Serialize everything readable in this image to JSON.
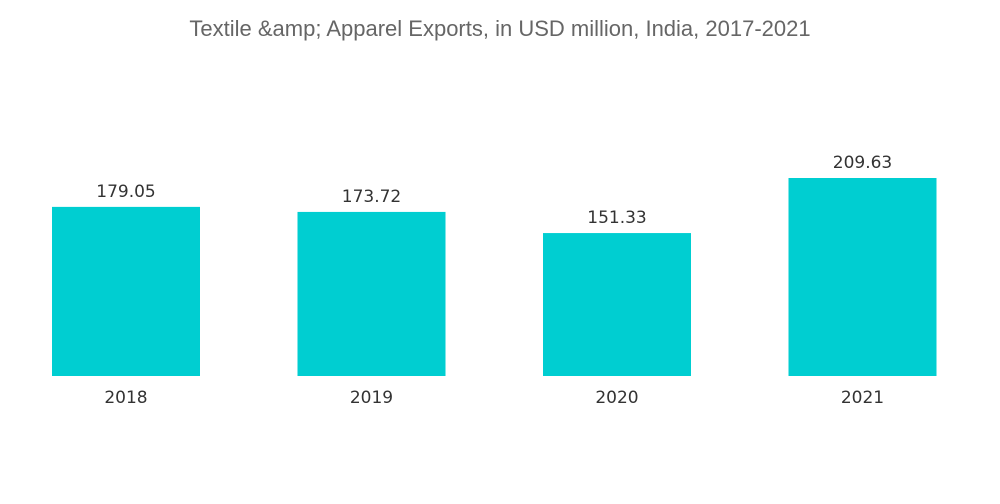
{
  "chart_data": {
    "type": "bar",
    "title": "Textile &amp; Apparel Exports, in USD million, India, 2017-2021",
    "categories": [
      "2018",
      "2019",
      "2020",
      "2021"
    ],
    "values": [
      179.05,
      173.72,
      151.33,
      209.63
    ],
    "value_labels": [
      "179.05",
      "173.72",
      "151.33",
      "209.63"
    ],
    "xlabel": "",
    "ylabel": "",
    "ylim": [
      0,
      209.63
    ],
    "grid": false,
    "legend": "none",
    "colors": {
      "bar": "#00CED1",
      "title": "#666666",
      "label": "#333333"
    }
  }
}
